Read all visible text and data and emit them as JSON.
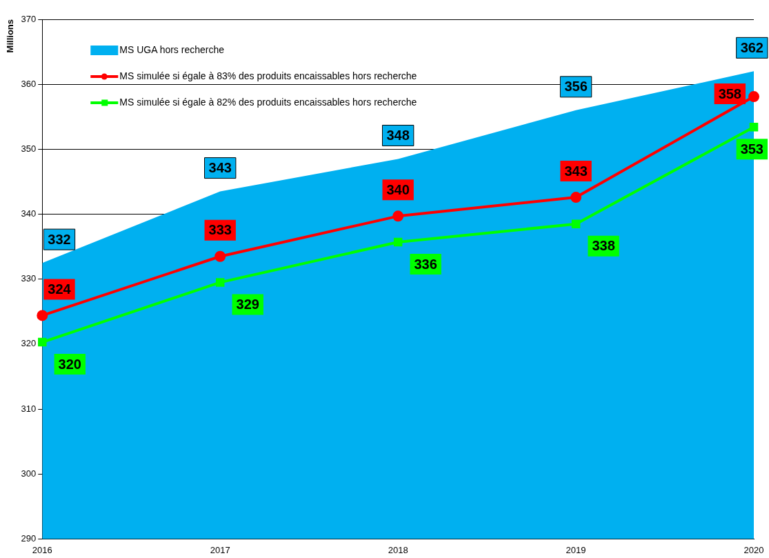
{
  "chart_data": {
    "type": "area",
    "ylabel": "Millions",
    "categories": [
      "2016",
      "2017",
      "2018",
      "2019",
      "2020"
    ],
    "series": [
      {
        "name": "MS UGA hors recherche",
        "color": "#00b0f0",
        "values": [
          332.5,
          343.5,
          348.5,
          356,
          362
        ],
        "value_labels": [
          "332",
          "343",
          "348",
          "356",
          "362"
        ]
      },
      {
        "name": "MS simulée si égale à 83% des produits encaissables hors recherche",
        "type": "line",
        "color": "#ff0000",
        "marker": "circle",
        "values": [
          324.4,
          333.5,
          339.7,
          342.6,
          358.1
        ],
        "value_labels": [
          "324",
          "333",
          "340",
          "343",
          "358"
        ]
      },
      {
        "name": "MS simulée si égale à 82% des produits encaissables hors recherche",
        "type": "line",
        "color": "#00ff00",
        "marker": "square",
        "values": [
          320.3,
          329.5,
          335.7,
          338.5,
          353.4
        ],
        "value_labels": [
          "320",
          "329",
          "336",
          "338",
          "353"
        ]
      }
    ],
    "ylim": [
      290,
      370
    ],
    "yticks": [
      290,
      300,
      310,
      320,
      330,
      340,
      350,
      360,
      370
    ],
    "grid": "y",
    "legend": "top left"
  }
}
